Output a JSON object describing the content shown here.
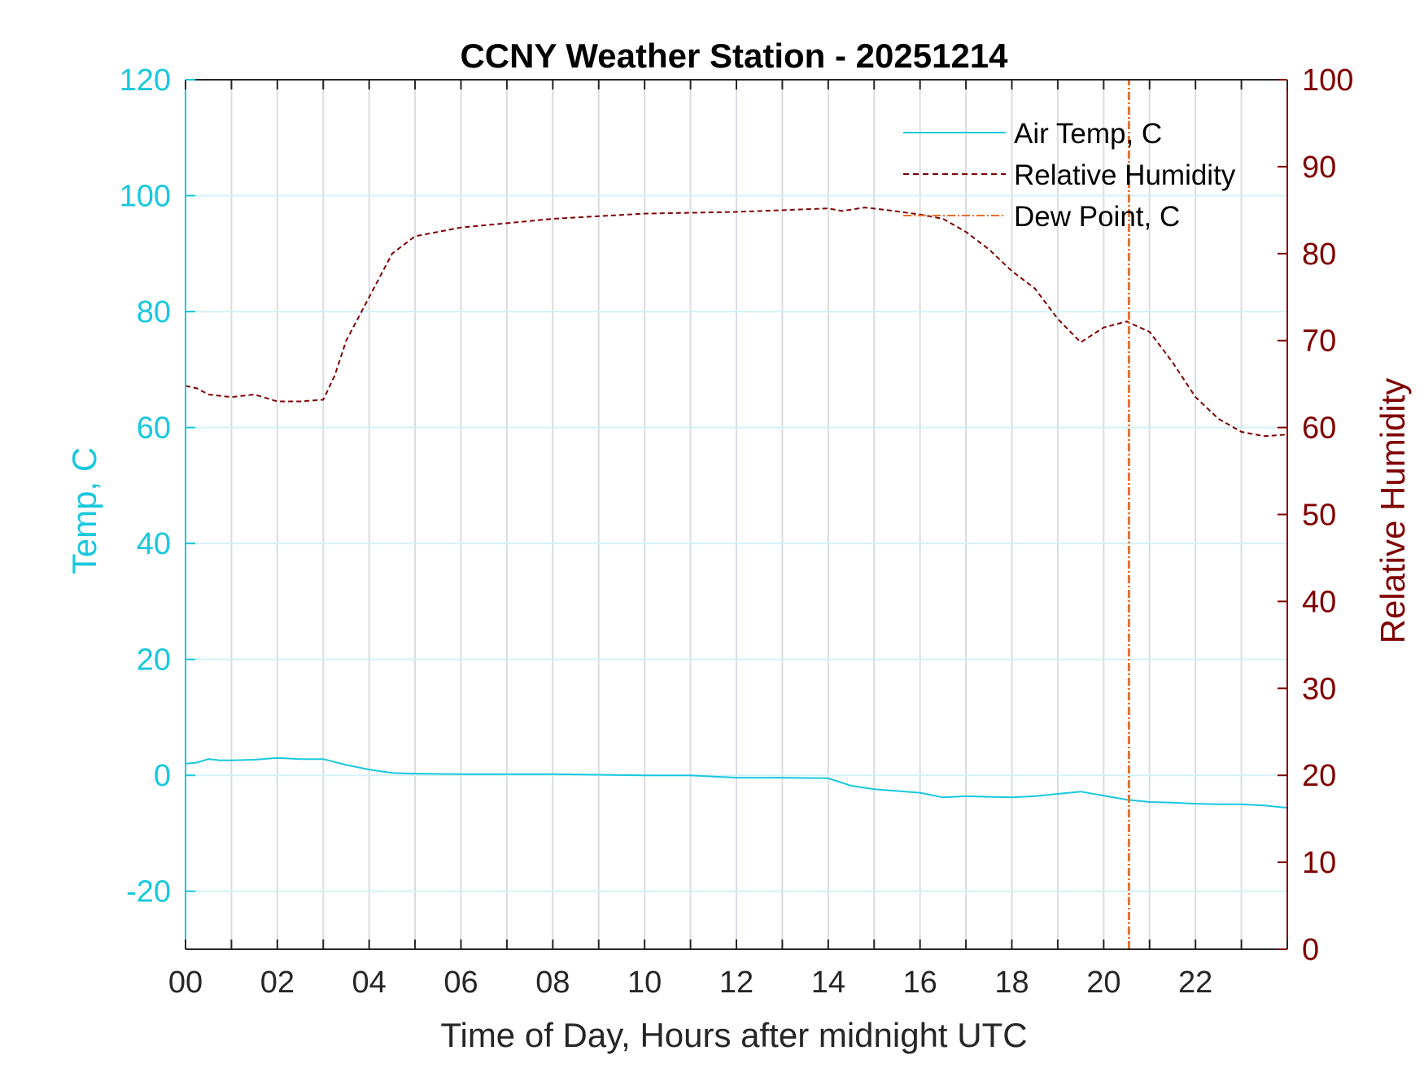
{
  "chart_data": {
    "type": "line",
    "title": "CCNY Weather Station - 20251214",
    "xlabel": "Time of Day, Hours after midnight UTC",
    "ylabel_left": "Temp, C",
    "ylabel_right": "Relative Humidity",
    "xlim": [
      0,
      24
    ],
    "ylim_left": [
      -30,
      120
    ],
    "ylim_right": [
      0,
      100
    ],
    "x_ticks": [
      0,
      2,
      4,
      6,
      8,
      10,
      12,
      14,
      16,
      18,
      20,
      22
    ],
    "x_tick_labels": [
      "00",
      "02",
      "04",
      "06",
      "08",
      "10",
      "12",
      "14",
      "16",
      "18",
      "20",
      "22"
    ],
    "y_left_ticks": [
      -20,
      0,
      20,
      40,
      60,
      80,
      100,
      120
    ],
    "y_left_tick_labels": [
      "-20",
      "0",
      "20",
      "40",
      "60",
      "80",
      "100",
      "120"
    ],
    "y_right_ticks": [
      0,
      10,
      20,
      30,
      40,
      50,
      60,
      70,
      80,
      90,
      100
    ],
    "y_right_tick_labels": [
      "0",
      "10",
      "20",
      "30",
      "40",
      "50",
      "60",
      "70",
      "80",
      "90",
      "100"
    ],
    "grid": true,
    "legend_position": "top-right",
    "colors": {
      "temp": "#18c8de",
      "rh": "#800000",
      "dew": "#e8702a",
      "grid_v": "#d8dde3",
      "grid_h": "#d4f1f6",
      "axis": "#262626"
    },
    "series": [
      {
        "name": "Air Temp, C",
        "axis": "left",
        "style": "solid",
        "x": [
          0,
          0.25,
          0.5,
          0.75,
          1,
          1.5,
          2,
          2.5,
          3,
          3.5,
          4,
          4.5,
          5,
          6,
          7,
          8,
          9,
          10,
          11,
          12,
          13,
          14,
          14.5,
          15,
          16,
          16.5,
          17,
          17.5,
          18,
          18.5,
          19,
          19.5,
          20,
          20.5,
          21,
          21.5,
          22,
          22.5,
          23,
          23.5,
          24
        ],
        "y": [
          2.0,
          2.2,
          2.8,
          2.6,
          2.6,
          2.7,
          3.0,
          2.8,
          2.8,
          1.8,
          1.0,
          0.4,
          0.3,
          0.2,
          0.2,
          0.2,
          0.1,
          0.0,
          0.0,
          -0.4,
          -0.4,
          -0.5,
          -1.8,
          -2.4,
          -3.0,
          -3.8,
          -3.6,
          -3.7,
          -3.8,
          -3.6,
          -3.2,
          -2.8,
          -3.5,
          -4.2,
          -4.6,
          -4.7,
          -4.9,
          -5.0,
          -5.0,
          -5.2,
          -5.6
        ]
      },
      {
        "name": "Relative Humidity",
        "axis": "right",
        "style": "dashed",
        "x": [
          0,
          0.25,
          0.5,
          1,
          1.5,
          2,
          2.5,
          3,
          3.25,
          3.5,
          4,
          4.5,
          5,
          5.5,
          6,
          7,
          8,
          9,
          10,
          11,
          12,
          13,
          14,
          14.3,
          14.8,
          15.3,
          16,
          16.5,
          17,
          17.5,
          18,
          18.5,
          19,
          19.5,
          20,
          20.5,
          21,
          21.5,
          22,
          22.5,
          23,
          23.5,
          24
        ],
        "y": [
          64.8,
          64.5,
          63.8,
          63.5,
          63.8,
          63.0,
          63.0,
          63.2,
          66.0,
          70.0,
          75.0,
          80.0,
          82.0,
          82.5,
          83.0,
          83.5,
          84.0,
          84.3,
          84.6,
          84.7,
          84.8,
          85.0,
          85.2,
          84.9,
          85.3,
          85.0,
          84.5,
          84.0,
          82.5,
          80.5,
          78.0,
          76.0,
          72.5,
          69.8,
          71.5,
          72.2,
          71.0,
          67.5,
          63.5,
          61.0,
          59.5,
          59.0,
          59.2
        ]
      },
      {
        "name": "Dew Point, C",
        "axis": "left",
        "style": "dash-dot",
        "x": [
          20.55,
          20.55
        ],
        "y": [
          -30,
          120
        ]
      }
    ]
  }
}
